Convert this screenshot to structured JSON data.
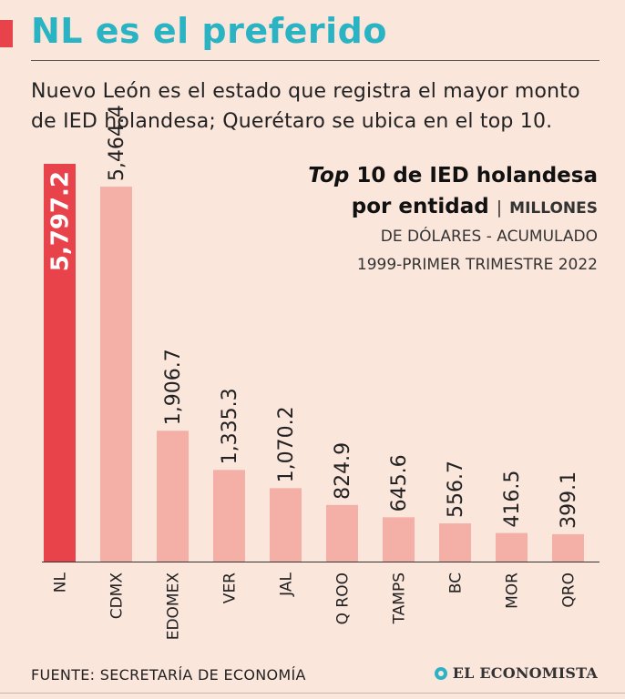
{
  "header": {
    "title": "NL es el preferido",
    "subtitle": "Nuevo León es el estado que registra el mayor monto de IED holandesa; Querétaro se ubica en el top 10."
  },
  "chart_head": {
    "title_italic": "Top",
    "title_rest": "10 de IED holandesa",
    "title_line2": "por entidad",
    "separator": "|",
    "unit_line1": "MILLONES",
    "unit_line2": "DE DÓLARES - ACUMULADO",
    "unit_line3": "1999-PRIMER TRIMESTRE 2022"
  },
  "chart_data": {
    "type": "bar",
    "title": "Top 10 de IED holandesa por entidad | MILLONES DE DÓLARES - ACUMULADO 1999-PRIMER TRIMESTRE 2022",
    "categories": [
      "NL",
      "CDMX",
      "EDOMEX",
      "VER",
      "JAL",
      "Q ROO",
      "TAMPS",
      "BC",
      "MOR",
      "QRO"
    ],
    "values": [
      5797.2,
      5464.4,
      1906.7,
      1335.3,
      1070.2,
      824.9,
      645.6,
      556.7,
      416.5,
      399.1
    ],
    "value_labels": [
      "5,797.2",
      "5,464.4",
      "1,906.7",
      "1,335.3",
      "1,070.2",
      "824.9",
      "645.6",
      "556.7",
      "416.5",
      "399.1"
    ],
    "highlight_index": 0,
    "colors": {
      "highlight": "#e8424a",
      "bar": "#f4b0a6",
      "label": "#222222",
      "highlight_label": "#ffffff"
    },
    "ylim": [
      0,
      5797.2
    ],
    "grid": false
  },
  "footer": {
    "source": "FUENTE: SECRETARÍA DE ECONOMÍA",
    "logo": "EL ECONOMISTA"
  }
}
